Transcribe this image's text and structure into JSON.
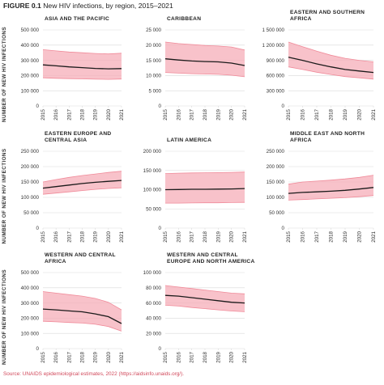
{
  "figure": {
    "label": "FIGURE 0.1",
    "title": "New HIV infections, by region, 2015–2021",
    "source": "Source: UNAIDS epidemiological estimates, 2022 (https://aidsinfo.unaids.org/)."
  },
  "y_axis_title": "NUMBER OF NEW HIV INFECTIONS",
  "colors": {
    "band": "#f6b3bd",
    "band_edge": "#f08a99",
    "line": "#1a1a1a",
    "grid": "#d9d9d9",
    "axis_text": "#333333",
    "title": "#222222",
    "source": "#d1495b"
  },
  "chart_data": [
    {
      "type": "area",
      "title": "ASIA AND THE PACIFIC",
      "x": [
        "2015",
        "2016",
        "2017",
        "2018",
        "2019",
        "2020",
        "2021"
      ],
      "ylim": [
        0,
        500000
      ],
      "yticks": [
        "0",
        "100 000",
        "200 000",
        "300 000",
        "400 000",
        "500 000"
      ],
      "estimate": [
        270000,
        264000,
        257000,
        252000,
        247000,
        244000,
        246000
      ],
      "upper": [
        370000,
        362000,
        355000,
        350000,
        345000,
        342000,
        347000
      ],
      "lower": [
        185000,
        182000,
        180000,
        178000,
        176000,
        175000,
        177000
      ],
      "grid": true
    },
    {
      "type": "area",
      "title": "CARIBBEAN",
      "x": [
        "2015",
        "2016",
        "2017",
        "2018",
        "2019",
        "2020",
        "2021"
      ],
      "ylim": [
        0,
        25000
      ],
      "yticks": [
        "0",
        "5 000",
        "10 000",
        "15 000",
        "20 000",
        "25 000"
      ],
      "estimate": [
        15500,
        15100,
        14800,
        14600,
        14500,
        14100,
        13300
      ],
      "upper": [
        21000,
        20500,
        20200,
        19900,
        19700,
        19400,
        18400
      ],
      "lower": [
        11000,
        10800,
        10600,
        10500,
        10400,
        10100,
        9600
      ],
      "grid": true
    },
    {
      "type": "area",
      "title": "EASTERN AND SOUTHERN AFRICA",
      "x": [
        "2015",
        "2016",
        "2017",
        "2018",
        "2019",
        "2020",
        "2021"
      ],
      "ylim": [
        0,
        1500000
      ],
      "yticks": [
        "0",
        "300 000",
        "600 000",
        "900 000",
        "1 200 000",
        "1 500 000"
      ],
      "estimate": [
        960000,
        900000,
        830000,
        770000,
        720000,
        690000,
        660000
      ],
      "upper": [
        1260000,
        1170000,
        1080000,
        1000000,
        940000,
        900000,
        870000
      ],
      "lower": [
        770000,
        720000,
        665000,
        620000,
        580000,
        555000,
        530000
      ],
      "grid": true
    },
    {
      "type": "area",
      "title": "EASTERN EUROPE AND CENTRAL ASIA",
      "x": [
        "2015",
        "2016",
        "2017",
        "2018",
        "2019",
        "2020",
        "2021"
      ],
      "ylim": [
        0,
        250000
      ],
      "yticks": [
        "0",
        "50 000",
        "100 000",
        "150 000",
        "200 000",
        "250 000"
      ],
      "estimate": [
        130000,
        135000,
        140000,
        145000,
        149000,
        152000,
        155000
      ],
      "upper": [
        150000,
        158000,
        165000,
        171000,
        176000,
        181000,
        185000
      ],
      "lower": [
        110000,
        114000,
        118000,
        122000,
        126000,
        129000,
        131000
      ],
      "grid": true
    },
    {
      "type": "area",
      "title": "LATIN AMERICA",
      "x": [
        "2015",
        "2016",
        "2017",
        "2018",
        "2019",
        "2020",
        "2021"
      ],
      "ylim": [
        0,
        200000
      ],
      "yticks": [
        "0",
        "50 000",
        "100 000",
        "150 000",
        "200 000"
      ],
      "estimate": [
        100000,
        100500,
        101000,
        101000,
        101500,
        102000,
        103000
      ],
      "upper": [
        142000,
        143000,
        143500,
        144000,
        144500,
        145000,
        146000
      ],
      "lower": [
        65000,
        65000,
        65500,
        66000,
        66000,
        66500,
        67000
      ],
      "grid": true
    },
    {
      "type": "area",
      "title": "MIDDLE EAST AND NORTH AFRICA",
      "x": [
        "2015",
        "2016",
        "2017",
        "2018",
        "2019",
        "2020",
        "2021"
      ],
      "ylim": [
        0,
        250000
      ],
      "yticks": [
        "0",
        "50 000",
        "100 000",
        "150 000",
        "200 000",
        "250 000"
      ],
      "estimate": [
        113000,
        116000,
        118000,
        120000,
        123000,
        127000,
        132000
      ],
      "upper": [
        143000,
        150000,
        153000,
        156000,
        160000,
        165000,
        172000
      ],
      "lower": [
        91000,
        93000,
        95000,
        97000,
        99000,
        102000,
        106000
      ],
      "grid": true
    },
    {
      "type": "area",
      "title": "WESTERN AND CENTRAL AFRICA",
      "x": [
        "2015",
        "2016",
        "2017",
        "2018",
        "2019",
        "2020",
        "2021"
      ],
      "ylim": [
        0,
        500000
      ],
      "yticks": [
        "0",
        "100 000",
        "200 000",
        "300 000",
        "400 000",
        "500 000"
      ],
      "estimate": [
        260000,
        255000,
        248000,
        242000,
        228000,
        210000,
        165000
      ],
      "upper": [
        375000,
        365000,
        355000,
        345000,
        330000,
        305000,
        255000
      ],
      "lower": [
        180000,
        176000,
        172000,
        168000,
        160000,
        145000,
        115000
      ],
      "grid": true
    },
    {
      "type": "area",
      "title": "WESTERN AND CENTRAL EUROPE AND NORTH AMERICA",
      "x": [
        "2015",
        "2016",
        "2017",
        "2018",
        "2019",
        "2020",
        "2021"
      ],
      "ylim": [
        0,
        100000
      ],
      "yticks": [
        "0",
        "20 000",
        "40 000",
        "60 000",
        "80 000",
        "100 000"
      ],
      "estimate": [
        70000,
        69000,
        67000,
        65000,
        63000,
        61000,
        60000
      ],
      "upper": [
        83000,
        81000,
        79000,
        77000,
        75000,
        73000,
        72000
      ],
      "lower": [
        57000,
        56000,
        54000,
        52500,
        51000,
        49500,
        48500
      ],
      "grid": true
    }
  ]
}
